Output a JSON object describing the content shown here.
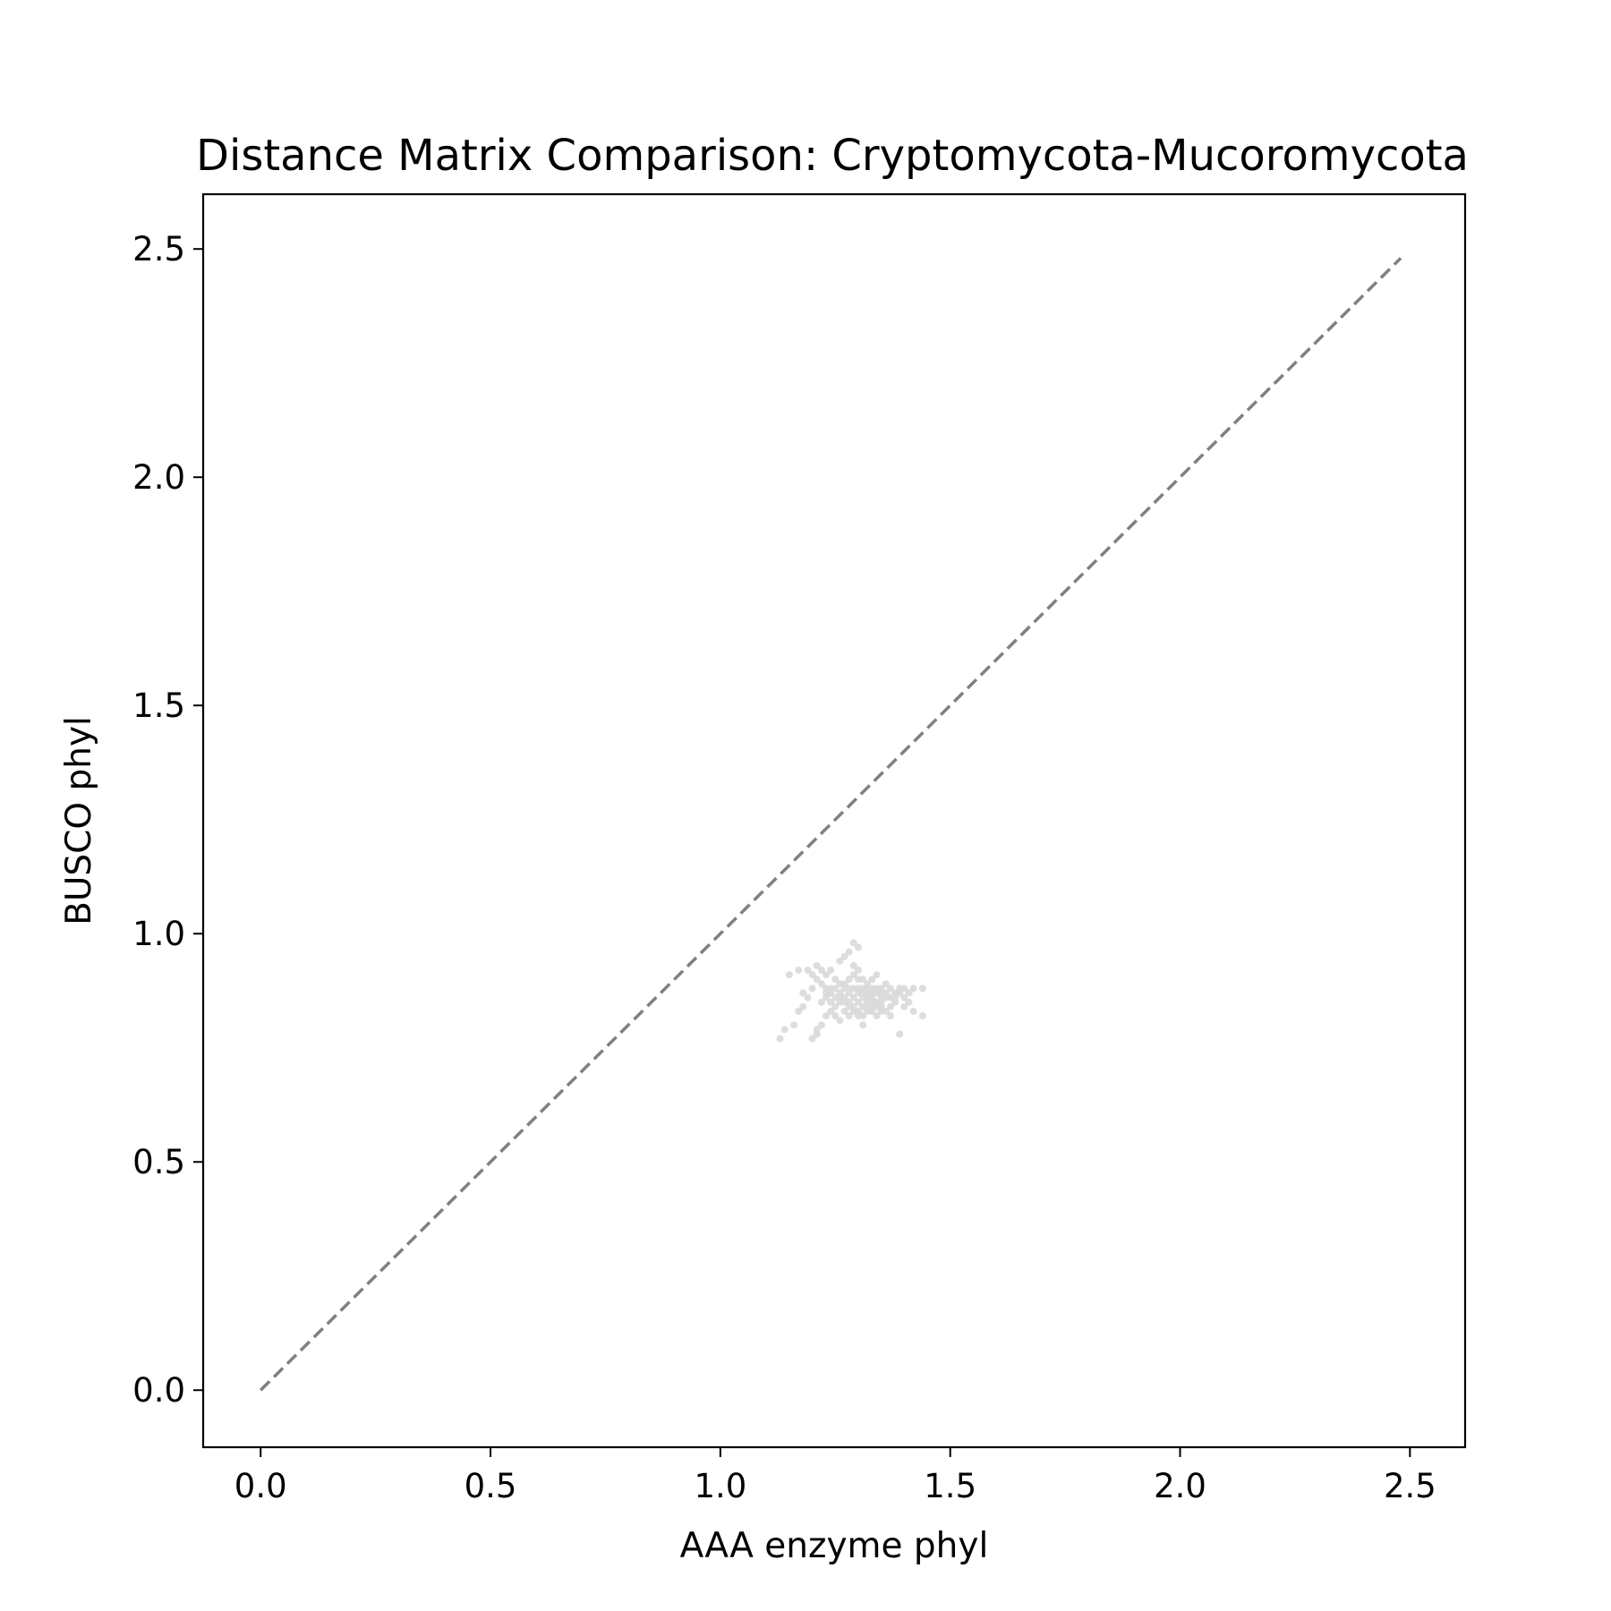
{
  "chart_data": {
    "type": "scatter",
    "title": "Distance Matrix Comparison: Cryptomycota-Mucoromycota",
    "xlabel": "AAA enzyme phyl",
    "ylabel": "BUSCO phyl",
    "xlim": [
      -0.125,
      2.62
    ],
    "ylim": [
      -0.125,
      2.62
    ],
    "xticks": [
      0.0,
      0.5,
      1.0,
      1.5,
      2.0,
      2.5
    ],
    "yticks": [
      0.0,
      0.5,
      1.0,
      1.5,
      2.0,
      2.5
    ],
    "xtick_labels": [
      "0.0",
      "0.5",
      "1.0",
      "1.5",
      "2.0",
      "2.5"
    ],
    "ytick_labels": [
      "0.0",
      "0.5",
      "1.0",
      "1.5",
      "2.0",
      "2.5"
    ],
    "grid": false,
    "legend": "none",
    "reference_line": {
      "x": [
        0.0,
        2.48
      ],
      "y": [
        0.0,
        2.48
      ],
      "style": "dashed",
      "color": "#808080"
    },
    "point_color": "#d9d9d9",
    "series": [
      {
        "points": [
          [
            1.13,
            0.77
          ],
          [
            1.14,
            0.79
          ],
          [
            1.16,
            0.8
          ],
          [
            1.18,
            0.84
          ],
          [
            1.19,
            0.86
          ],
          [
            1.2,
            0.88
          ],
          [
            1.15,
            0.91
          ],
          [
            1.17,
            0.92
          ],
          [
            1.19,
            0.92
          ],
          [
            1.21,
            0.93
          ],
          [
            1.22,
            0.92
          ],
          [
            1.23,
            0.91
          ],
          [
            1.24,
            0.92
          ],
          [
            1.26,
            0.94
          ],
          [
            1.27,
            0.95
          ],
          [
            1.28,
            0.96
          ],
          [
            1.29,
            0.98
          ],
          [
            1.3,
            0.97
          ],
          [
            1.25,
            0.9
          ],
          [
            1.26,
            0.89
          ],
          [
            1.27,
            0.88
          ],
          [
            1.28,
            0.9
          ],
          [
            1.29,
            0.91
          ],
          [
            1.3,
            0.92
          ],
          [
            1.31,
            0.9
          ],
          [
            1.32,
            0.89
          ],
          [
            1.33,
            0.88
          ],
          [
            1.34,
            0.87
          ],
          [
            1.35,
            0.88
          ],
          [
            1.36,
            0.89
          ],
          [
            1.37,
            0.88
          ],
          [
            1.38,
            0.87
          ],
          [
            1.39,
            0.88
          ],
          [
            1.4,
            0.86
          ],
          [
            1.41,
            0.85
          ],
          [
            1.42,
            0.88
          ],
          [
            1.44,
            0.88
          ],
          [
            1.44,
            0.82
          ],
          [
            1.42,
            0.83
          ],
          [
            1.4,
            0.84
          ],
          [
            1.39,
            0.78
          ],
          [
            1.37,
            0.82
          ],
          [
            1.36,
            0.83
          ],
          [
            1.35,
            0.84
          ],
          [
            1.34,
            0.82
          ],
          [
            1.33,
            0.83
          ],
          [
            1.32,
            0.84
          ],
          [
            1.31,
            0.8
          ],
          [
            1.3,
            0.82
          ],
          [
            1.29,
            0.83
          ],
          [
            1.28,
            0.84
          ],
          [
            1.27,
            0.85
          ],
          [
            1.26,
            0.86
          ],
          [
            1.25,
            0.84
          ],
          [
            1.24,
            0.83
          ],
          [
            1.23,
            0.82
          ],
          [
            1.22,
            0.8
          ],
          [
            1.21,
            0.79
          ],
          [
            1.2,
            0.77
          ],
          [
            1.21,
            0.78
          ],
          [
            1.22,
            0.85
          ],
          [
            1.23,
            0.86
          ],
          [
            1.24,
            0.87
          ],
          [
            1.25,
            0.88
          ],
          [
            1.26,
            0.87
          ],
          [
            1.27,
            0.86
          ],
          [
            1.28,
            0.85
          ],
          [
            1.29,
            0.86
          ],
          [
            1.3,
            0.87
          ],
          [
            1.31,
            0.86
          ],
          [
            1.32,
            0.85
          ],
          [
            1.33,
            0.86
          ],
          [
            1.34,
            0.85
          ],
          [
            1.35,
            0.86
          ],
          [
            1.36,
            0.87
          ],
          [
            1.37,
            0.86
          ],
          [
            1.38,
            0.85
          ],
          [
            1.29,
            0.84
          ],
          [
            1.3,
            0.85
          ],
          [
            1.31,
            0.84
          ],
          [
            1.32,
            0.87
          ],
          [
            1.33,
            0.9
          ],
          [
            1.34,
            0.91
          ],
          [
            1.35,
            0.85
          ],
          [
            1.28,
            0.82
          ],
          [
            1.27,
            0.83
          ],
          [
            1.26,
            0.81
          ],
          [
            1.25,
            0.82
          ],
          [
            1.24,
            0.85
          ],
          [
            1.23,
            0.88
          ],
          [
            1.22,
            0.89
          ],
          [
            1.21,
            0.9
          ],
          [
            1.2,
            0.91
          ],
          [
            1.18,
            0.87
          ],
          [
            1.17,
            0.83
          ],
          [
            1.29,
            0.93
          ],
          [
            1.3,
            0.88
          ],
          [
            1.31,
            0.88
          ],
          [
            1.32,
            0.86
          ],
          [
            1.33,
            0.84
          ],
          [
            1.34,
            0.88
          ],
          [
            1.35,
            0.87
          ],
          [
            1.36,
            0.86
          ],
          [
            1.37,
            0.84
          ],
          [
            1.38,
            0.86
          ],
          [
            1.39,
            0.87
          ],
          [
            1.4,
            0.88
          ],
          [
            1.41,
            0.87
          ],
          [
            1.28,
            0.87
          ],
          [
            1.27,
            0.89
          ],
          [
            1.26,
            0.85
          ],
          [
            1.25,
            0.86
          ],
          [
            1.24,
            0.88
          ],
          [
            1.23,
            0.87
          ],
          [
            1.3,
            0.83
          ],
          [
            1.31,
            0.82
          ],
          [
            1.32,
            0.83
          ],
          [
            1.33,
            0.85
          ],
          [
            1.34,
            0.84
          ],
          [
            1.35,
            0.83
          ],
          [
            1.29,
            0.88
          ],
          [
            1.3,
            0.9
          ],
          [
            1.31,
            0.87
          ],
          [
            1.32,
            0.88
          ],
          [
            1.33,
            0.87
          ],
          [
            1.28,
            0.88
          ]
        ]
      }
    ]
  }
}
